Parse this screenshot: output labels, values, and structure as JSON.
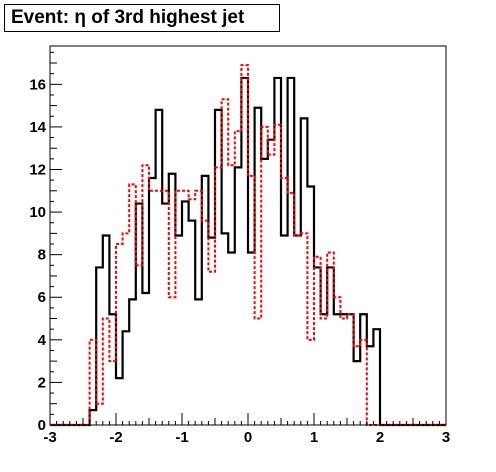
{
  "chart_data": {
    "type": "bar",
    "title": "Event: η of 3rd highest jet",
    "xlim": [
      -3,
      3
    ],
    "ylim": [
      0,
      17.8
    ],
    "x_ticks": [
      -3,
      -2,
      -1,
      0,
      1,
      2,
      3
    ],
    "y_ticks": [
      0,
      2,
      4,
      6,
      8,
      10,
      12,
      14,
      16
    ],
    "bin_edges": [
      -3.0,
      -2.9,
      -2.8,
      -2.7,
      -2.6,
      -2.5,
      -2.4,
      -2.3,
      -2.2,
      -2.1,
      -2.0,
      -1.9,
      -1.8,
      -1.7,
      -1.6,
      -1.5,
      -1.4,
      -1.3,
      -1.2,
      -1.1,
      -1.0,
      -0.9,
      -0.8,
      -0.7,
      -0.6,
      -0.5,
      -0.4,
      -0.3,
      -0.2,
      -0.1,
      0.0,
      0.1,
      0.2,
      0.3,
      0.4,
      0.5,
      0.6,
      0.7,
      0.8,
      0.9,
      1.0,
      1.1,
      1.2,
      1.3,
      1.4,
      1.5,
      1.6,
      1.7,
      1.8,
      1.9,
      2.0,
      2.1,
      2.2,
      2.3,
      2.4,
      2.5,
      2.6,
      2.7,
      2.8,
      2.9,
      3.0
    ],
    "series": [
      {
        "style": "solid",
        "color": "#000000",
        "values": [
          0,
          0,
          0,
          0,
          0,
          0,
          0.7,
          7.4,
          8.9,
          5.2,
          2.2,
          4.4,
          5.9,
          10.4,
          6.2,
          11.6,
          14.8,
          10.4,
          11.8,
          8.9,
          10.5,
          9.6,
          5.9,
          11.7,
          8.8,
          14.8,
          9.0,
          8.1,
          12.1,
          16.3,
          8.1,
          14.9,
          12.5,
          13.4,
          16.3,
          8.9,
          16.3,
          8.9,
          14.4,
          11.2,
          7.4,
          5.2,
          7.4,
          5.2,
          5.2,
          5.2,
          3.0,
          5.2,
          3.7,
          4.5,
          0,
          0,
          0,
          0,
          0,
          0,
          0,
          0,
          0,
          0
        ]
      },
      {
        "style": "dashed",
        "color": "#ff0000",
        "values": [
          0,
          0,
          0,
          0,
          0,
          0,
          4.0,
          1.0,
          5.0,
          3.0,
          8.5,
          9.0,
          11.3,
          7.5,
          12.2,
          11.0,
          11.0,
          11.0,
          6.0,
          11.0,
          11.0,
          10.6,
          11.0,
          9.6,
          7.2,
          12.1,
          15.3,
          12.2,
          13.8,
          16.9,
          11.7,
          5.0,
          14.0,
          12.7,
          14.1,
          11.6,
          10.9,
          8.9,
          9.0,
          4.0,
          7.9,
          5.0,
          8.1,
          6.0,
          5.0,
          5.2,
          3.7,
          4.0,
          0,
          0,
          0,
          0,
          0,
          0,
          0,
          0,
          0,
          0,
          0,
          0
        ]
      }
    ]
  }
}
